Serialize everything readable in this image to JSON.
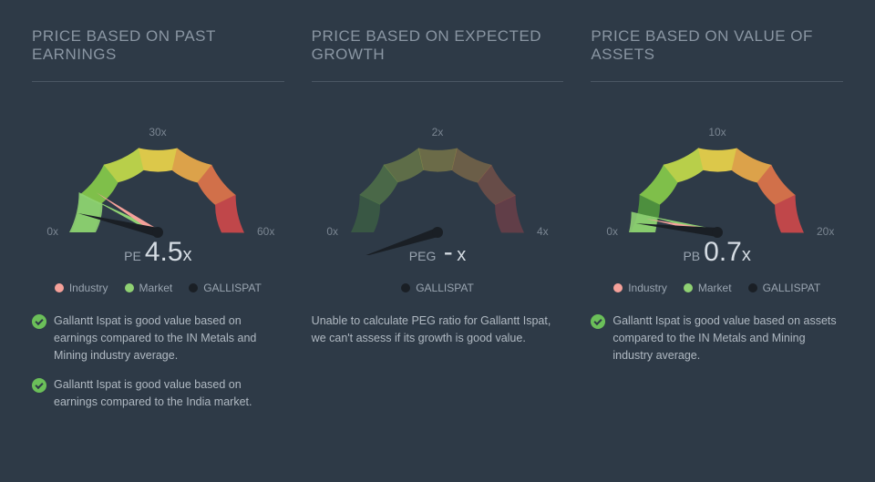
{
  "colors": {
    "background": "#2e3a47",
    "title_text": "#8a96a3",
    "body_text": "#b0b9c2",
    "divider": "#4a5663",
    "tick_text": "#7a8591",
    "industry": "#f5a19a",
    "market": "#8fd173",
    "company": "#1a1f25",
    "check_bg": "#6bbf59",
    "gradient_stops": [
      "#4d8f3e",
      "#7fbf4a",
      "#b8cf4a",
      "#dcc84a",
      "#dca24a",
      "#d1704a",
      "#c0474a"
    ]
  },
  "panels": [
    {
      "title": "PRICE BASED ON PAST EARNINGS",
      "gauge": {
        "type": "semicircular-gauge",
        "min": 0,
        "max": 60,
        "ticks": [
          {
            "value": 0,
            "label": "0x"
          },
          {
            "value": 30,
            "label": "30x"
          },
          {
            "value": 60,
            "label": "60x"
          }
        ],
        "needles": [
          {
            "series": "market",
            "value": 9,
            "color": "#8fd173",
            "is_wedge": true
          },
          {
            "series": "industry",
            "value": 11,
            "color": "#f5a19a",
            "is_wedge": false
          },
          {
            "series": "company",
            "value": 4.5,
            "color": "#1a1f25",
            "is_wedge": false
          }
        ]
      },
      "metric": {
        "label": "PE",
        "value": "4.5",
        "suffix": "x"
      },
      "legend": [
        {
          "label": "Industry",
          "color": "#f5a19a"
        },
        {
          "label": "Market",
          "color": "#8fd173"
        },
        {
          "label": "GALLISPAT",
          "color": "#1a1f25"
        }
      ],
      "notes": [
        {
          "type": "check",
          "text": "Gallantt Ispat is good value based on earnings compared to the IN Metals and Mining industry average."
        },
        {
          "type": "check",
          "text": "Gallantt Ispat is good value based on earnings compared to the India market."
        }
      ]
    },
    {
      "title": "PRICE BASED ON EXPECTED GROWTH",
      "gauge": {
        "type": "semicircular-gauge",
        "min": 0,
        "max": 4,
        "ticks": [
          {
            "value": 0,
            "label": "0x"
          },
          {
            "value": 2,
            "label": "2x"
          },
          {
            "value": 4,
            "label": "4x"
          }
        ],
        "needles": [
          {
            "series": "company",
            "value": -0.4,
            "color": "#1a1f25",
            "is_wedge": false
          }
        ],
        "dimmed": true
      },
      "metric": {
        "label": "PEG",
        "value": "-",
        "suffix": "x"
      },
      "legend": [
        {
          "label": "GALLISPAT",
          "color": "#1a1f25"
        }
      ],
      "notes": [
        {
          "type": "plain",
          "text": "Unable to calculate PEG ratio for Gallantt Ispat, we can't assess if its growth is good value."
        }
      ]
    },
    {
      "title": "PRICE BASED ON VALUE OF ASSETS",
      "gauge": {
        "type": "semicircular-gauge",
        "min": 0,
        "max": 20,
        "ticks": [
          {
            "value": 0,
            "label": "0x"
          },
          {
            "value": 10,
            "label": "10x"
          },
          {
            "value": 20,
            "label": "20x"
          }
        ],
        "needles": [
          {
            "series": "market",
            "value": 1.5,
            "color": "#8fd173",
            "is_wedge": true
          },
          {
            "series": "industry",
            "value": 1.2,
            "color": "#f5a19a",
            "is_wedge": false
          },
          {
            "series": "company",
            "value": 0.7,
            "color": "#1a1f25",
            "is_wedge": false
          }
        ]
      },
      "metric": {
        "label": "PB",
        "value": "0.7",
        "suffix": "x"
      },
      "legend": [
        {
          "label": "Industry",
          "color": "#f5a19a"
        },
        {
          "label": "Market",
          "color": "#8fd173"
        },
        {
          "label": "GALLISPAT",
          "color": "#1a1f25"
        }
      ],
      "notes": [
        {
          "type": "check",
          "text": "Gallantt Ispat is good value based on assets compared to the IN Metals and Mining industry average."
        }
      ]
    }
  ]
}
